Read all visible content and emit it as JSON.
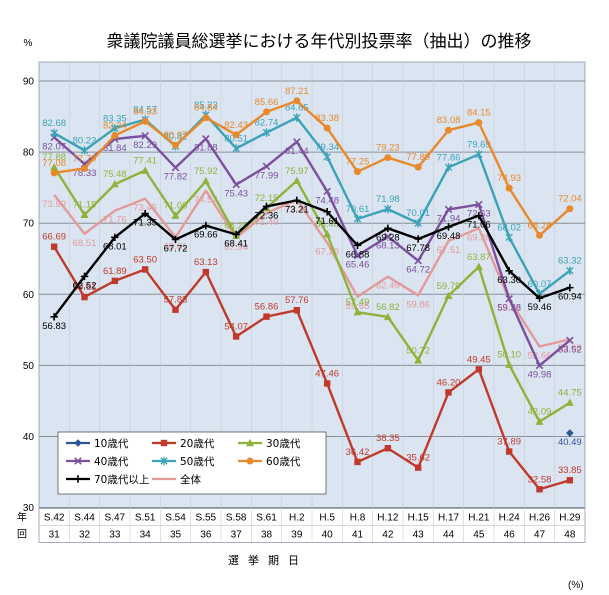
{
  "chart_data": {
    "type": "line",
    "title": "衆議院議員総選挙における年代別投票率（抽出）の推移",
    "ylabel": "%",
    "unit_note": "(%)",
    "xlabel": "選挙期日",
    "row_labels": [
      "年",
      "回"
    ],
    "ylim": [
      30,
      90
    ],
    "yticks": [
      30,
      40,
      50,
      60,
      70,
      80,
      90
    ],
    "grid": true,
    "legend_position": "bottom-left",
    "categories": [
      "S.42",
      "S.44",
      "S.47",
      "S.51",
      "S.54",
      "S.55",
      "S.58",
      "S.61",
      "H.2",
      "H.5",
      "H.8",
      "H.12",
      "H.15",
      "H.17",
      "H.21",
      "H.24",
      "H.26",
      "H.29"
    ],
    "sessions": [
      "31",
      "32",
      "33",
      "34",
      "35",
      "36",
      "37",
      "38",
      "39",
      "40",
      "41",
      "42",
      "43",
      "44",
      "45",
      "46",
      "47",
      "48"
    ],
    "series": [
      {
        "name": "10歳代",
        "color": "#2f5597",
        "marker": "diamond",
        "values": [
          null,
          null,
          null,
          null,
          null,
          null,
          null,
          null,
          null,
          null,
          null,
          null,
          null,
          null,
          null,
          null,
          null,
          40.49
        ]
      },
      {
        "name": "20歳代",
        "color": "#c0392b",
        "marker": "square",
        "values": [
          66.69,
          59.61,
          61.89,
          63.5,
          57.83,
          63.13,
          54.07,
          56.86,
          57.76,
          47.46,
          36.42,
          38.35,
          35.62,
          46.2,
          49.45,
          37.89,
          32.58,
          33.85
        ]
      },
      {
        "name": "30歳代",
        "color": "#8db33a",
        "marker": "triangle",
        "values": [
          77.88,
          71.19,
          75.48,
          77.41,
          71.06,
          75.92,
          68.25,
          72.15,
          75.97,
          68.46,
          57.49,
          56.82,
          50.72,
          59.79,
          63.87,
          50.1,
          42.09,
          44.75
        ]
      },
      {
        "name": "40歳代",
        "color": "#7b4f9e",
        "marker": "x",
        "values": [
          82.07,
          78.33,
          81.84,
          82.29,
          77.82,
          81.88,
          75.43,
          77.99,
          81.44,
          74.48,
          65.46,
          68.13,
          64.72,
          71.94,
          72.63,
          59.38,
          49.98,
          53.52
        ]
      },
      {
        "name": "50歳代",
        "color": "#3ba2b7",
        "marker": "star",
        "values": [
          82.68,
          80.23,
          83.35,
          84.57,
          80.82,
          85.23,
          80.51,
          82.74,
          84.85,
          79.34,
          70.61,
          71.98,
          70.01,
          77.86,
          79.69,
          68.02,
          60.07,
          63.32
        ]
      },
      {
        "name": "60歳代",
        "color": "#e8892b",
        "marker": "circle",
        "values": [
          77.08,
          77.7,
          82.34,
          84.33,
          80.97,
          84.84,
          82.43,
          85.66,
          87.21,
          83.38,
          77.25,
          79.23,
          77.89,
          83.08,
          84.15,
          74.93,
          68.28,
          72.04
        ]
      },
      {
        "name": "70歳代以上",
        "color": "#000000",
        "marker": "plus",
        "values": [
          56.83,
          62.52,
          68.01,
          71.35,
          67.72,
          69.66,
          68.41,
          72.36,
          73.21,
          71.61,
          66.88,
          69.28,
          67.78,
          69.48,
          71.06,
          63.3,
          59.46,
          60.94
        ]
      },
      {
        "name": "全体",
        "color": "#e39a9a",
        "marker": "none",
        "values": [
          73.99,
          68.51,
          71.76,
          73.45,
          68.01,
          74.57,
          67.94,
          71.4,
          73.31,
          67.26,
          59.65,
          62.49,
          59.86,
          67.51,
          69.28,
          59.32,
          52.66,
          53.68
        ]
      }
    ]
  }
}
